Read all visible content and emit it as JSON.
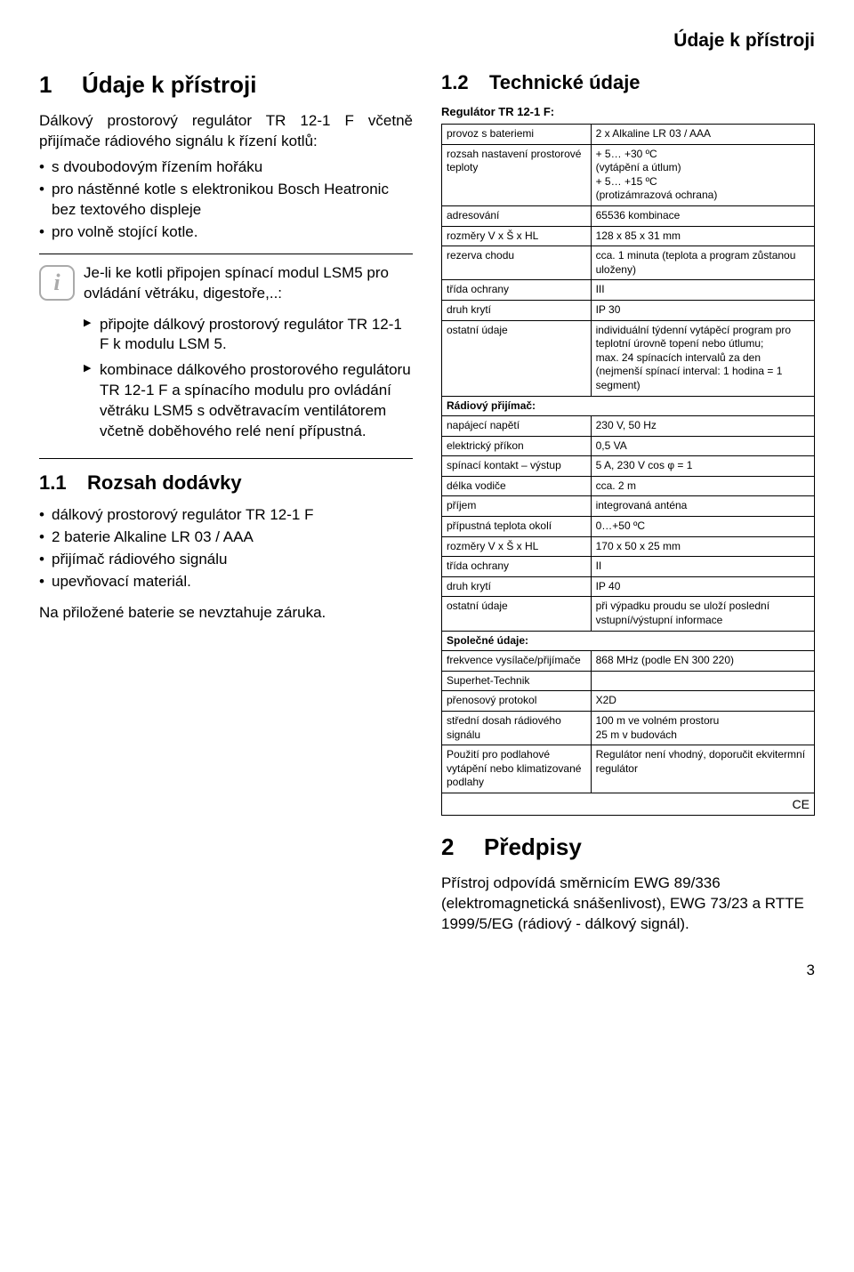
{
  "page": {
    "running_header": "Údaje k přístroji",
    "page_number": "3"
  },
  "left": {
    "h1_num": "1",
    "h1_title": "Údaje k přístroji",
    "intro": "Dálkový prostorový regulátor TR 12-1 F včetně přijímače rádiového signálu k řízení kotlů:",
    "intro_bullets": [
      "s dvoubodovým řízením hořáku",
      "pro nástěnné kotle s elektronikou Bosch Heatronic bez textového displeje",
      "pro volně stojící kotle."
    ],
    "info_para": "Je-li ke kotli připojen spínací modul LSM5 pro ovládání větráku, digestoře,..:",
    "info_items": [
      "připojte dálkový prostorový regulátor TR 12-1 F k modulu LSM 5.",
      "kombinace dálkového prostorového regulátoru TR 12-1 F a spínacího modulu pro ovládání větráku LSM5 s odvětravacím ventilátorem včetně doběhového relé není přípustná."
    ],
    "h2a_num": "1.1",
    "h2a_title": "Rozsah dodávky",
    "delivery": [
      "dálkový prostorový regulátor TR 12-1 F",
      "2 baterie Alkaline LR 03 / AAA",
      "přijímač rádiového signálu",
      "upevňovací materiál."
    ],
    "warranty_note": "Na přiložené baterie se nevztahuje záruka."
  },
  "right": {
    "h2b_num": "1.2",
    "h2b_title": "Technické údaje",
    "spec_head": "Regulátor TR 12-1 F:",
    "table": {
      "section_radio": "Rádiový přijímač:",
      "section_common": "Společné údaje:",
      "rows_reg": [
        [
          "provoz s bateriemi",
          "2 x Alkaline LR 03 / AAA"
        ],
        [
          "rozsah nastavení prostorové teploty",
          "+ 5… +30 ºC\n(vytápění a útlum)\n+ 5… +15 ºC\n(protizámrazová ochrana)"
        ],
        [
          "adresování",
          "65536 kombinace"
        ],
        [
          "rozměry V x Š x HL",
          "128 x 85 x 31 mm"
        ],
        [
          "rezerva chodu",
          "cca. 1 minuta (teplota a program zůstanou uloženy)"
        ],
        [
          "třída ochrany",
          "III"
        ],
        [
          "druh krytí",
          "IP 30"
        ],
        [
          "ostatní údaje",
          "individuální týdenní vytápěcí program pro teplotní úrovně topení nebo útlumu;\nmax. 24 spínacích intervalů za den (nejmenší spínací interval: 1 hodina = 1 segment)"
        ]
      ],
      "rows_radio": [
        [
          "napájecí napětí",
          "230 V, 50 Hz"
        ],
        [
          "elektrický příkon",
          "0,5 VA"
        ],
        [
          "spínací kontakt – výstup",
          "5 A, 230 V   cos φ = 1"
        ],
        [
          "délka vodiče",
          "cca. 2 m"
        ],
        [
          "příjem",
          "integrovaná anténa"
        ],
        [
          "přípustná teplota okolí",
          "0…+50 ºC"
        ],
        [
          "rozměry V x Š x HL",
          "170 x 50 x 25 mm"
        ],
        [
          "třída ochrany",
          "II"
        ],
        [
          "druh krytí",
          "IP 40"
        ],
        [
          "ostatní údaje",
          "při výpadku proudu se uloží poslední vstupní/výstupní informace"
        ]
      ],
      "rows_common": [
        [
          "frekvence vysílače/přijímače",
          "868 MHz (podle EN 300 220)"
        ],
        [
          "Superhet-Technik",
          ""
        ],
        [
          "přenosový protokol",
          "X2D"
        ],
        [
          "střední dosah rádiového signálu",
          "100 m ve volném prostoru\n25 m v budovách"
        ],
        [
          "Použití pro podlahové vytápění nebo klimatizované podlahy",
          "Regulátor není vhodný, doporučit ekvitermní regulátor"
        ]
      ],
      "ce_mark": "CE"
    },
    "h1c_num": "2",
    "h1c_title": "Předpisy",
    "regs_text": "Přístroj odpovídá směrnicím EWG 89/336 (elektromagnetická snášenlivost), EWG 73/23 a RTTE 1999/5/EG (rádiový - dálkový signál)."
  }
}
